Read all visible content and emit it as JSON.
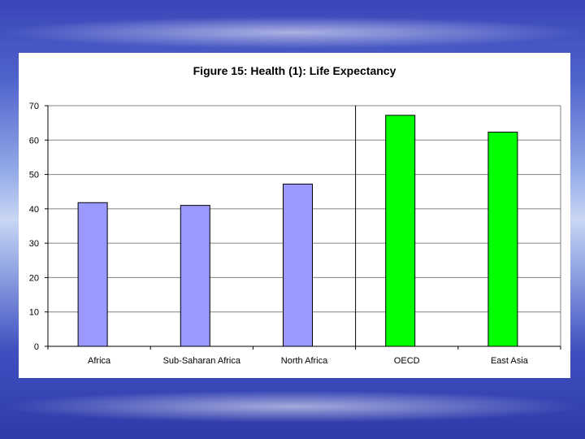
{
  "chart_data": {
    "type": "bar",
    "title": "Figure 15: Health (1): Life Expectancy",
    "xlabel": "",
    "ylabel": "",
    "categories": [
      "Africa",
      "Sub-Saharan Africa",
      "North Africa",
      "OECD",
      "East Asia"
    ],
    "values": [
      41.8,
      41,
      47.2,
      67.2,
      62.3
    ],
    "bar_colors": [
      "#9999ff",
      "#9999ff",
      "#9999ff",
      "#00ff00",
      "#00ff00"
    ],
    "ylim": [
      0,
      70
    ],
    "yticks": [
      "0",
      "10",
      "20",
      "30",
      "40",
      "50",
      "60",
      "70"
    ],
    "grid": true,
    "legend": "none"
  }
}
